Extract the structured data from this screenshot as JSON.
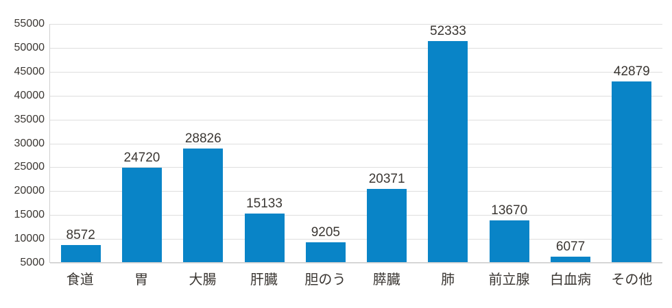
{
  "chart_data": {
    "type": "bar",
    "title": "",
    "xlabel": "",
    "ylabel": "",
    "categories": [
      "食道",
      "胃",
      "大腸",
      "肝臓",
      "胆のう",
      "膵臓",
      "肺",
      "前立腺",
      "白血病",
      "その他"
    ],
    "values": [
      8572,
      24720,
      28826,
      15133,
      9205,
      20371,
      52333,
      13670,
      6077,
      42879
    ],
    "value_labels": [
      "8572",
      "24720",
      "28826",
      "15133",
      "9205",
      "20371",
      "52333",
      "13670",
      "6077",
      "42879"
    ],
    "ylim": [
      5000,
      55000
    ],
    "ytick_step": 5000,
    "ytick_labels": [
      "55000",
      "50000",
      "45000",
      "40000",
      "35000",
      "30000",
      "25000",
      "20000",
      "15000",
      "10000",
      "5000"
    ],
    "grid": true,
    "legend": "none",
    "colors": {
      "bar": "#0984c7",
      "gridline": "#dedede",
      "axis_line": "#cfcfcf",
      "label_text": "#3a3632",
      "background": "#ffffff"
    }
  }
}
